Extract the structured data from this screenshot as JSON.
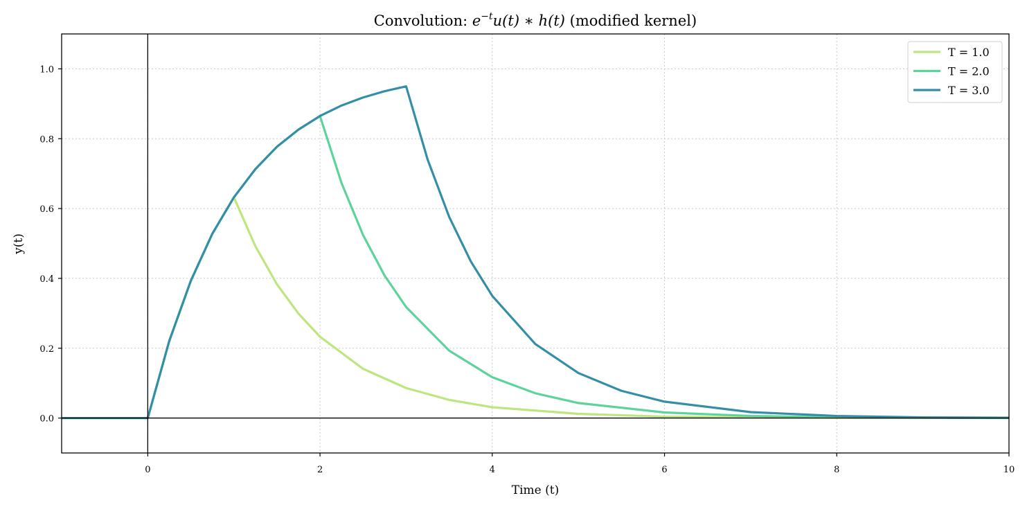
{
  "chart_data": {
    "type": "line",
    "title": {
      "prefix": "Convolution: ",
      "math_base": "e",
      "math_sup": "−t",
      "math_rest": "u(t) ∗ h(t)",
      "suffix": " (modified kernel)"
    },
    "xlabel": "Time (t)",
    "ylabel": "y(t)",
    "xlim": [
      -1,
      10
    ],
    "ylim": [
      -0.1,
      1.1
    ],
    "xticks": [
      0,
      2,
      4,
      6,
      8,
      10
    ],
    "xtick_labels": [
      "0",
      "2",
      "4",
      "6",
      "8",
      "10"
    ],
    "yticks": [
      0.0,
      0.2,
      0.4,
      0.6,
      0.8,
      1.0
    ],
    "ytick_labels": [
      "0.0",
      "0.2",
      "0.4",
      "0.6",
      "0.8",
      "1.0"
    ],
    "grid": true,
    "legend_position": "top-right",
    "series": [
      {
        "name": "T = 1.0",
        "color": "#bde67e",
        "x": [
          -1,
          0,
          0.25,
          0.5,
          0.75,
          1.0,
          1.25,
          1.5,
          1.75,
          2.0,
          2.5,
          3.0,
          3.5,
          4.0,
          5.0,
          6.0,
          7.0,
          8.0,
          10.0
        ],
        "y": [
          0,
          0,
          0.221,
          0.393,
          0.528,
          0.632,
          0.492,
          0.383,
          0.299,
          0.233,
          0.141,
          0.086,
          0.052,
          0.031,
          0.012,
          0.004,
          0.002,
          0.001,
          0.0
        ]
      },
      {
        "name": "T = 2.0",
        "color": "#5dd39b",
        "x": [
          -1,
          0,
          0.25,
          0.5,
          0.75,
          1.0,
          1.25,
          1.5,
          1.75,
          2.0,
          2.25,
          2.5,
          2.75,
          3.0,
          3.5,
          4.0,
          4.5,
          5.0,
          6.0,
          7.0,
          8.0,
          10.0
        ],
        "y": [
          0,
          0,
          0.221,
          0.393,
          0.528,
          0.632,
          0.713,
          0.777,
          0.826,
          0.865,
          0.673,
          0.524,
          0.408,
          0.318,
          0.193,
          0.117,
          0.071,
          0.043,
          0.016,
          0.006,
          0.002,
          0.0
        ]
      },
      {
        "name": "T = 3.0",
        "color": "#348ea6",
        "x": [
          -1,
          0,
          0.25,
          0.5,
          0.75,
          1.0,
          1.25,
          1.5,
          1.75,
          2.0,
          2.25,
          2.5,
          2.75,
          3.0,
          3.25,
          3.5,
          3.75,
          4.0,
          4.5,
          5.0,
          5.5,
          6.0,
          7.0,
          8.0,
          9.0,
          10.0
        ],
        "y": [
          0,
          0,
          0.221,
          0.393,
          0.528,
          0.632,
          0.713,
          0.777,
          0.826,
          0.865,
          0.895,
          0.918,
          0.936,
          0.95,
          0.74,
          0.576,
          0.449,
          0.35,
          0.212,
          0.129,
          0.078,
          0.047,
          0.017,
          0.006,
          0.002,
          0.001
        ]
      }
    ]
  }
}
